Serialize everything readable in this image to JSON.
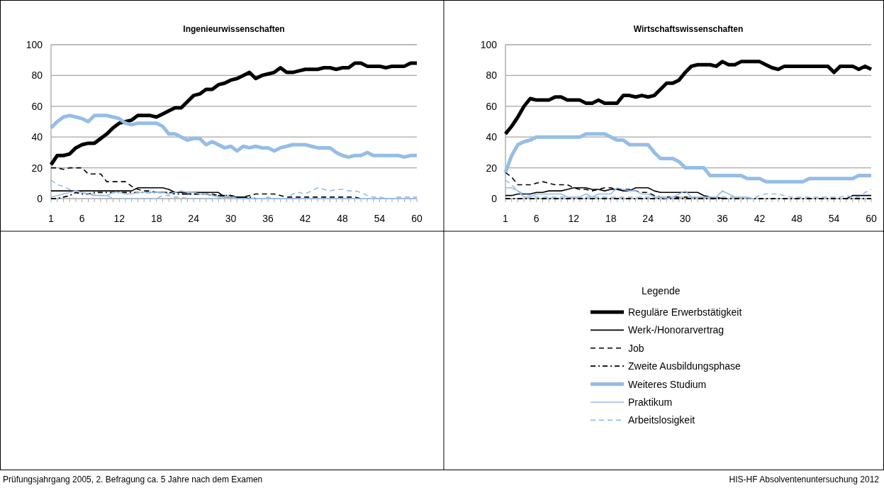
{
  "chart_data": [
    {
      "type": "line",
      "title": "Ingenieurwissenschaften",
      "x": [
        1,
        2,
        3,
        4,
        5,
        6,
        7,
        8,
        9,
        10,
        11,
        12,
        13,
        14,
        15,
        16,
        17,
        18,
        19,
        20,
        21,
        22,
        23,
        24,
        25,
        26,
        27,
        28,
        29,
        30,
        31,
        32,
        33,
        34,
        35,
        36,
        37,
        38,
        39,
        40,
        41,
        42,
        43,
        44,
        45,
        46,
        47,
        48,
        49,
        50,
        51,
        52,
        53,
        54,
        55,
        56,
        57,
        58,
        59,
        60
      ],
      "xlim": [
        1,
        60
      ],
      "xticks": [
        1,
        6,
        12,
        18,
        24,
        30,
        36,
        42,
        48,
        54,
        60
      ],
      "ylim": [
        0,
        100
      ],
      "yticks": [
        0,
        20,
        40,
        60,
        80,
        100
      ],
      "grid": "y",
      "annotations": [
        "Prüfungsjahrgang 2005, 2. Befragung ca. 5 Jahre nach dem Examen",
        "HIS-HF Absolventenuntersuchung 2012"
      ],
      "series": [
        {
          "color": "#000000",
          "line_style": "solid",
          "values": [
            22,
            28,
            28,
            29,
            33,
            35,
            36,
            36,
            39,
            42,
            46,
            49,
            50,
            51,
            54,
            54,
            54,
            53,
            55,
            57,
            59,
            59,
            63,
            67,
            68,
            71,
            71,
            74,
            75,
            77,
            78,
            80,
            82,
            78,
            80,
            81,
            82,
            85,
            82,
            82,
            83,
            84,
            84,
            84,
            85,
            85,
            84,
            85,
            85,
            88,
            88,
            86,
            86,
            86,
            85,
            86,
            86,
            86,
            88,
            88
          ]
        },
        {
          "color": "#000000",
          "line_style": "solid",
          "values": [
            5,
            5,
            5,
            5,
            5,
            5,
            5,
            5,
            5,
            5,
            5,
            5,
            5,
            5,
            7,
            7,
            7,
            7,
            7,
            6,
            4,
            4,
            4,
            4,
            4,
            4,
            4,
            4,
            1,
            1,
            1,
            1,
            0,
            null,
            null,
            null,
            null,
            null,
            null,
            null,
            null,
            null,
            null,
            null,
            null,
            null,
            null,
            null,
            null,
            null,
            null,
            null,
            null,
            null,
            null,
            null,
            null,
            null,
            null,
            null
          ]
        },
        {
          "color": "#000000",
          "line_style": "dashed",
          "values": [
            20,
            20,
            19,
            20,
            20,
            20,
            16,
            16,
            16,
            11,
            11,
            11,
            11,
            8,
            6,
            5,
            5,
            4,
            4,
            4,
            4,
            4,
            3,
            3,
            3,
            3,
            3,
            2,
            2,
            2,
            1,
            1,
            2,
            3,
            3,
            3,
            3,
            2,
            1,
            1,
            1,
            1,
            1,
            1,
            1,
            1,
            1,
            1,
            1,
            1,
            0,
            null,
            null,
            null,
            null,
            null,
            null,
            null,
            null,
            null
          ]
        },
        {
          "color": "#000000",
          "line_style": "dashdot",
          "values": [
            0,
            0,
            1,
            2,
            4,
            3,
            3,
            4,
            4,
            4,
            4,
            4,
            4,
            4,
            4,
            4,
            4,
            4,
            4,
            4,
            3,
            3,
            3,
            3,
            3,
            3,
            2,
            2,
            2,
            2,
            1,
            1,
            1,
            0,
            null,
            null,
            null,
            null,
            null,
            null,
            null,
            null,
            null,
            null,
            null,
            null,
            null,
            null,
            null,
            null,
            null,
            null,
            null,
            null,
            null,
            null,
            null,
            null,
            null,
            null
          ]
        },
        {
          "color": "#95bde6",
          "line_style": "solid",
          "values": [
            46,
            50,
            53,
            54,
            53,
            52,
            50,
            54,
            54,
            54,
            53,
            52,
            49,
            48,
            49,
            49,
            49,
            49,
            47,
            42,
            42,
            40,
            38,
            39,
            39,
            35,
            37,
            35,
            33,
            34,
            31,
            34,
            33,
            34,
            33,
            33,
            31,
            33,
            34,
            35,
            35,
            35,
            34,
            33,
            33,
            33,
            30,
            28,
            27,
            28,
            28,
            30,
            28,
            28,
            28,
            28,
            28,
            27,
            28,
            28
          ]
        },
        {
          "color": "#95bde6",
          "line_style": "solid",
          "values": [
            1,
            2,
            3,
            4,
            5,
            4,
            3,
            2,
            2,
            2,
            4,
            4,
            3,
            3,
            4,
            4,
            4,
            4,
            4,
            3,
            4,
            5,
            4,
            4,
            3,
            3,
            2,
            1,
            1,
            1,
            0,
            0,
            0,
            0,
            0,
            0,
            0,
            0,
            0,
            0,
            0,
            0,
            0,
            0,
            0,
            0,
            0,
            0,
            0,
            0,
            0,
            0,
            0,
            0,
            0,
            0,
            0,
            0,
            0,
            0
          ]
        },
        {
          "color": "#95bde6",
          "line_style": "dashed",
          "values": [
            12,
            9,
            8,
            6,
            5,
            4,
            3,
            3,
            2,
            2,
            0,
            0,
            0,
            0,
            0,
            0,
            0,
            0,
            2,
            2,
            1,
            1,
            0,
            0,
            0,
            0,
            0,
            0,
            1,
            2,
            0,
            0,
            0,
            0,
            0,
            1,
            0,
            0,
            0,
            3,
            4,
            3,
            5,
            7,
            6,
            5,
            6,
            6,
            5,
            5,
            4,
            2,
            1,
            1,
            0,
            0,
            1,
            1,
            1,
            1
          ]
        }
      ]
    },
    {
      "type": "line",
      "title": "Wirtschaftswissenschaften",
      "x": [
        1,
        2,
        3,
        4,
        5,
        6,
        7,
        8,
        9,
        10,
        11,
        12,
        13,
        14,
        15,
        16,
        17,
        18,
        19,
        20,
        21,
        22,
        23,
        24,
        25,
        26,
        27,
        28,
        29,
        30,
        31,
        32,
        33,
        34,
        35,
        36,
        37,
        38,
        39,
        40,
        41,
        42,
        43,
        44,
        45,
        46,
        47,
        48,
        49,
        50,
        51,
        52,
        53,
        54,
        55,
        56,
        57,
        58,
        59,
        60
      ],
      "xlim": [
        1,
        60
      ],
      "xticks": [
        1,
        6,
        12,
        18,
        24,
        30,
        36,
        42,
        48,
        54,
        60
      ],
      "ylim": [
        0,
        100
      ],
      "yticks": [
        0,
        20,
        40,
        60,
        80,
        100
      ],
      "grid": "y",
      "legend": "bottom",
      "legend_title": "Legende",
      "series": [
        {
          "name": "Reguläre Erwerbstätigkeit",
          "color": "#000000",
          "line_style": "solid",
          "values": [
            42,
            47,
            53,
            60,
            65,
            64,
            64,
            64,
            66,
            66,
            64,
            64,
            64,
            62,
            62,
            64,
            62,
            62,
            62,
            67,
            67,
            66,
            67,
            66,
            67,
            71,
            75,
            75,
            77,
            82,
            86,
            87,
            87,
            87,
            86,
            89,
            87,
            87,
            89,
            89,
            89,
            89,
            87,
            85,
            84,
            86,
            86,
            86,
            86,
            86,
            86,
            86,
            86,
            82,
            86,
            86,
            86,
            84,
            86,
            84
          ]
        },
        {
          "name": "Werk-/Honorarvertrag",
          "color": "#000000",
          "line_style": "solid",
          "values": [
            2,
            2,
            3,
            3,
            3,
            4,
            4,
            5,
            5,
            5,
            6,
            7,
            7,
            7,
            6,
            6,
            5,
            6,
            6,
            5,
            5,
            7,
            7,
            7,
            5,
            4,
            4,
            4,
            4,
            4,
            4,
            4,
            2,
            1,
            0,
            null,
            null,
            null,
            null,
            null,
            null,
            null,
            null,
            null,
            null,
            null,
            null,
            null,
            null,
            null,
            null,
            null,
            null,
            null,
            null,
            0,
            2,
            2,
            2,
            2
          ]
        },
        {
          "name": "Job",
          "color": "#000000",
          "line_style": "dashed",
          "values": [
            17,
            14,
            9,
            9,
            9,
            10,
            11,
            10,
            9,
            9,
            9,
            7,
            6,
            6,
            5,
            6,
            7,
            7,
            6,
            6,
            6,
            5,
            4,
            4,
            2,
            1,
            1,
            1,
            1,
            1,
            1,
            1,
            1,
            1,
            1,
            0,
            null,
            null,
            null,
            null,
            null,
            null,
            null,
            null,
            null,
            null,
            null,
            null,
            null,
            null,
            null,
            null,
            null,
            null,
            null,
            null,
            null,
            null,
            null,
            null
          ]
        },
        {
          "name": "Zweite Ausbildungsphase",
          "color": "#000000",
          "line_style": "dashdot",
          "values": [
            0,
            0,
            0,
            0,
            0,
            0,
            0,
            0,
            0,
            0,
            0,
            0,
            0,
            0,
            0,
            0,
            0,
            0,
            0,
            0,
            0,
            0,
            0,
            0,
            0,
            0,
            0,
            0,
            0,
            0,
            0,
            0,
            0,
            0,
            0,
            0,
            0,
            0,
            0,
            0,
            0,
            0,
            0,
            0,
            0,
            0,
            0,
            0,
            0,
            0,
            0,
            0,
            0,
            0,
            0,
            0,
            0,
            0,
            0,
            0
          ]
        },
        {
          "name": "Weiteres Studium",
          "color": "#95bde6",
          "line_style": "solid",
          "values": [
            17,
            28,
            35,
            37,
            38,
            40,
            40,
            40,
            40,
            40,
            40,
            40,
            40,
            42,
            42,
            42,
            42,
            40,
            38,
            38,
            35,
            35,
            35,
            35,
            30,
            26,
            26,
            26,
            24,
            20,
            20,
            20,
            20,
            15,
            15,
            15,
            15,
            15,
            15,
            13,
            13,
            13,
            11,
            11,
            11,
            11,
            11,
            11,
            11,
            13,
            13,
            13,
            13,
            13,
            13,
            13,
            13,
            15,
            15,
            15
          ]
        },
        {
          "name": "Praktikum",
          "color": "#95bde6",
          "line_style": "solid",
          "values": [
            7,
            7,
            5,
            1,
            1,
            3,
            3,
            3,
            3,
            3,
            1,
            1,
            1,
            3,
            1,
            3,
            3,
            3,
            7,
            6,
            5,
            5,
            3,
            3,
            1,
            1,
            0,
            1,
            3,
            5,
            1,
            1,
            1,
            1,
            1,
            5,
            3,
            1,
            1,
            1,
            0,
            null,
            null,
            null,
            null,
            null,
            null,
            null,
            null,
            null,
            null,
            null,
            null,
            null,
            null,
            null,
            null,
            null,
            null,
            null
          ]
        },
        {
          "name": "Arbeitslosigkeit",
          "color": "#95bde6",
          "line_style": "dashed",
          "values": [
            12,
            9,
            5,
            3,
            2,
            1,
            1,
            1,
            1,
            1,
            1,
            1,
            1,
            1,
            1,
            1,
            1,
            1,
            1,
            1,
            1,
            1,
            1,
            1,
            1,
            1,
            1,
            1,
            1,
            1,
            1,
            1,
            1,
            1,
            1,
            1,
            1,
            1,
            1,
            0,
            0,
            2,
            3,
            3,
            3,
            2,
            1,
            1,
            1,
            1,
            1,
            1,
            1,
            1,
            1,
            2,
            1,
            1,
            4,
            6
          ]
        }
      ]
    }
  ]
}
